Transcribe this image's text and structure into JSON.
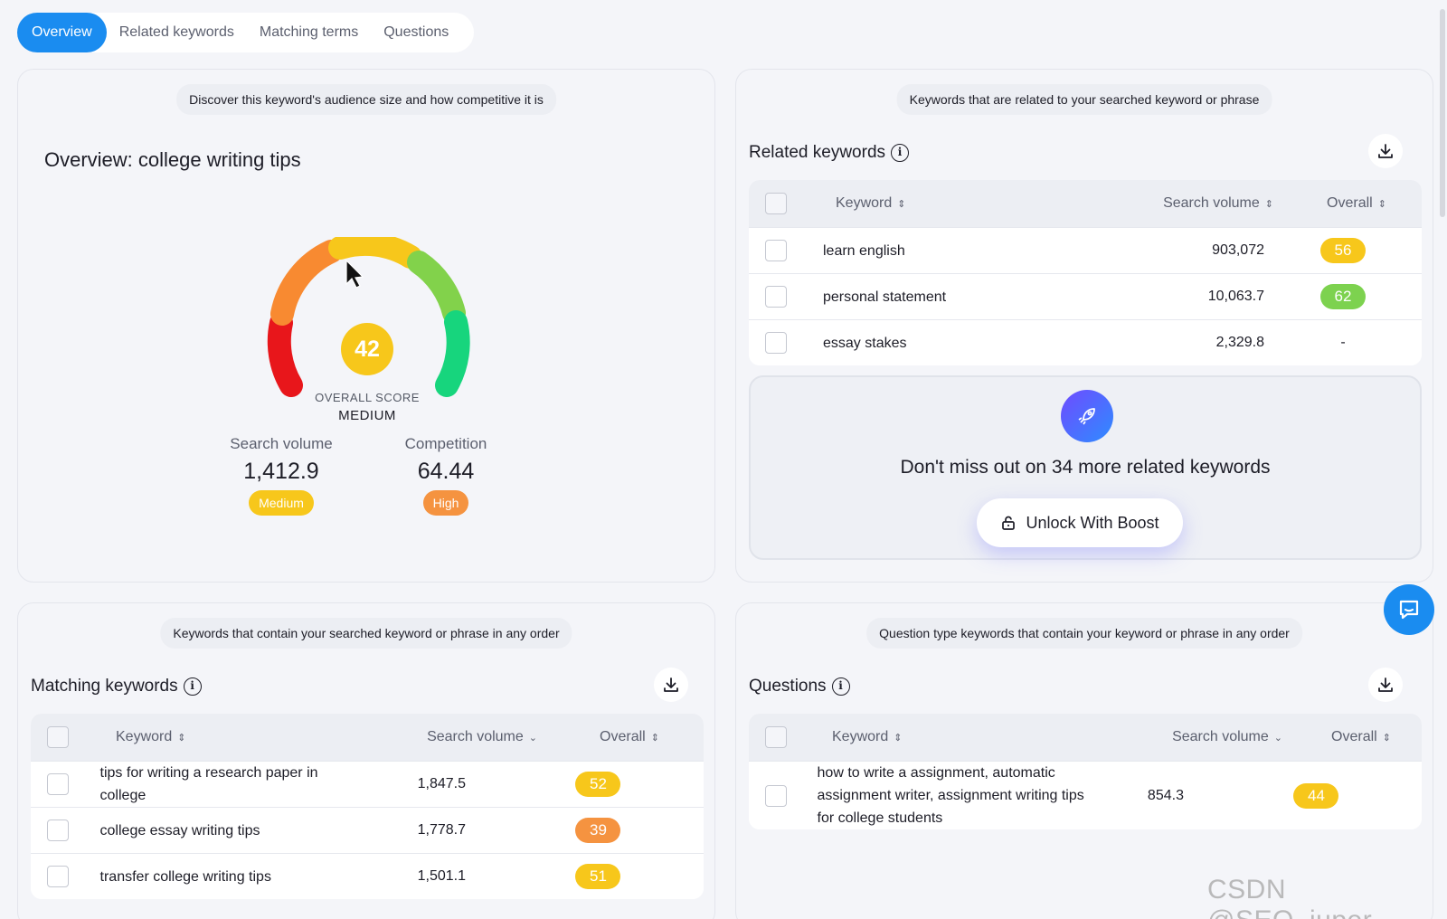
{
  "tabs": [
    "Overview",
    "Related keywords",
    "Matching terms",
    "Questions"
  ],
  "overview": {
    "hint": "Discover this keyword's audience size and how competitive it is",
    "title": "Overview: college writing tips",
    "score": 42,
    "score_label": "OVERALL SCORE",
    "score_level": "MEDIUM",
    "search_volume": {
      "label": "Search volume",
      "value": "1,412.9",
      "badge": "Medium",
      "badge_color": "#f7c71b"
    },
    "competition": {
      "label": "Competition",
      "value": "64.44",
      "badge": "High",
      "badge_color": "#f59340"
    }
  },
  "related": {
    "hint": "Keywords that are related to your searched keyword or phrase",
    "title": "Related keywords",
    "columns": [
      "Keyword",
      "Search volume",
      "Overall"
    ],
    "rows": [
      {
        "keyword": "learn english",
        "volume": "903,072",
        "overall": "56",
        "color": "#f7c71b"
      },
      {
        "keyword": "personal statement",
        "volume": "10,063.7",
        "overall": "62",
        "color": "#7dd24f"
      },
      {
        "keyword": "essay stakes",
        "volume": "2,329.8",
        "overall": "-",
        "color": ""
      }
    ],
    "boost_text": "Don't miss out on 34 more related keywords",
    "boost_button": "Unlock With Boost"
  },
  "matching": {
    "hint": "Keywords that contain your searched keyword or phrase in any order",
    "title": "Matching keywords",
    "columns": [
      "Keyword",
      "Search volume",
      "Overall"
    ],
    "rows": [
      {
        "keyword": "tips for writing a research paper in college",
        "volume": "1,847.5",
        "overall": "52",
        "color": "#f7c71b"
      },
      {
        "keyword": "college essay writing tips",
        "volume": "1,778.7",
        "overall": "39",
        "color": "#f59340"
      },
      {
        "keyword": "transfer college writing tips",
        "volume": "1,501.1",
        "overall": "51",
        "color": "#f7c71b"
      }
    ]
  },
  "questions": {
    "hint": "Question type keywords that contain your keyword or phrase in any order",
    "title": "Questions",
    "columns": [
      "Keyword",
      "Search volume",
      "Overall"
    ],
    "rows": [
      {
        "keyword": "how to write a assignment, automatic assignment writer, assignment writing tips for college students",
        "volume": "854.3",
        "overall": "44",
        "color": "#f7c71b"
      }
    ]
  },
  "watermark": "CSDN @SEO_juper",
  "icons": [
    "download-icon",
    "info-icon",
    "rocket-icon",
    "lock-icon",
    "chat-icon",
    "sort-icon",
    "chevron-down-icon",
    "cursor-icon"
  ]
}
